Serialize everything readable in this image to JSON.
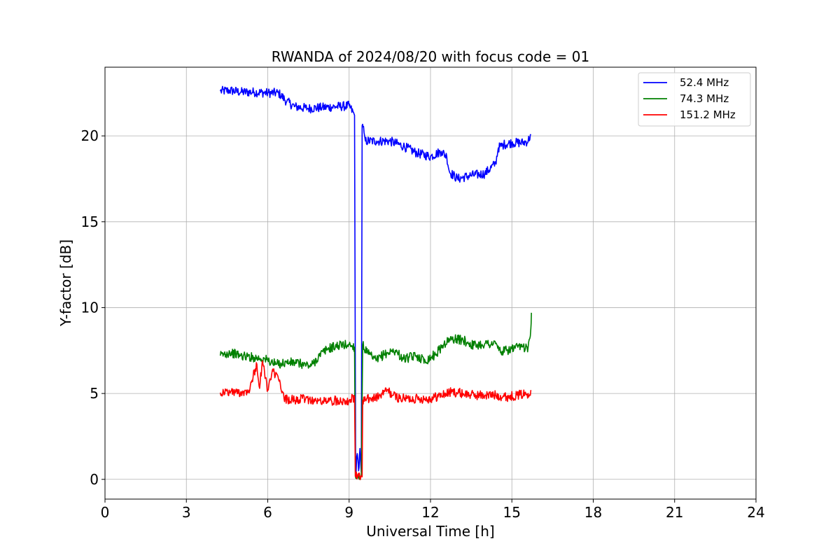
{
  "chart_data": {
    "type": "line",
    "title": "RWANDA of 2024/08/20 with focus code = 01",
    "xlabel": "Universal Time [h]",
    "ylabel": "Y-factor [dB]",
    "xlim": [
      0,
      24
    ],
    "ylim": [
      -1.15,
      24
    ],
    "xticks": [
      0,
      3,
      6,
      9,
      12,
      15,
      18,
      21,
      24
    ],
    "xtick_labels": [
      "0",
      "3",
      "6",
      "9",
      "12",
      "15",
      "18",
      "21",
      "24"
    ],
    "yticks": [
      0,
      5,
      10,
      15,
      20
    ],
    "ytick_labels": [
      "0",
      "5",
      "10",
      "15",
      "20"
    ],
    "grid": true,
    "legend_position": "top-right",
    "series": [
      {
        "name": "52.4 MHz",
        "color": "#0000ff",
        "points": [
          [
            4.25,
            22.6
          ],
          [
            4.6,
            22.65
          ],
          [
            5.0,
            22.55
          ],
          [
            5.5,
            22.55
          ],
          [
            6.0,
            22.5
          ],
          [
            6.4,
            22.5
          ],
          [
            6.7,
            22.0
          ],
          [
            7.0,
            21.7
          ],
          [
            7.5,
            21.6
          ],
          [
            8.0,
            21.65
          ],
          [
            8.5,
            21.7
          ],
          [
            9.0,
            21.75
          ],
          [
            9.2,
            21.2
          ],
          [
            9.24,
            0.3
          ],
          [
            9.3,
            1.5
          ],
          [
            9.35,
            0.5
          ],
          [
            9.4,
            1.8
          ],
          [
            9.45,
            0.4
          ],
          [
            9.48,
            20.6
          ],
          [
            9.55,
            20.2
          ],
          [
            9.6,
            19.7
          ],
          [
            10.0,
            19.7
          ],
          [
            10.5,
            19.7
          ],
          [
            11.0,
            19.4
          ],
          [
            11.5,
            19.0
          ],
          [
            12.0,
            18.8
          ],
          [
            12.4,
            19.1
          ],
          [
            12.6,
            18.8
          ],
          [
            12.7,
            17.9
          ],
          [
            13.0,
            17.5
          ],
          [
            13.5,
            17.7
          ],
          [
            14.0,
            17.8
          ],
          [
            14.4,
            18.4
          ],
          [
            14.5,
            19.3
          ],
          [
            14.7,
            19.5
          ],
          [
            15.0,
            19.6
          ],
          [
            15.4,
            19.6
          ],
          [
            15.6,
            19.7
          ],
          [
            15.7,
            20.1
          ]
        ]
      },
      {
        "name": "74.3 MHz",
        "color": "#008000",
        "points": [
          [
            4.25,
            7.2
          ],
          [
            4.6,
            7.4
          ],
          [
            5.0,
            7.2
          ],
          [
            5.5,
            7.1
          ],
          [
            5.9,
            7.0
          ],
          [
            6.3,
            6.7
          ],
          [
            6.7,
            6.8
          ],
          [
            7.0,
            6.8
          ],
          [
            7.3,
            6.7
          ],
          [
            7.6,
            6.6
          ],
          [
            7.9,
            7.2
          ],
          [
            8.2,
            7.6
          ],
          [
            8.6,
            7.8
          ],
          [
            9.0,
            7.85
          ],
          [
            9.2,
            7.7
          ],
          [
            9.23,
            0.2
          ],
          [
            9.45,
            0.2
          ],
          [
            9.5,
            7.8
          ],
          [
            9.7,
            7.3
          ],
          [
            10.0,
            6.9
          ],
          [
            10.3,
            7.3
          ],
          [
            10.7,
            7.5
          ],
          [
            11.0,
            7.0
          ],
          [
            11.5,
            7.2
          ],
          [
            11.8,
            6.9
          ],
          [
            12.2,
            7.3
          ],
          [
            12.5,
            7.9
          ],
          [
            12.8,
            8.2
          ],
          [
            13.2,
            8.1
          ],
          [
            13.6,
            7.8
          ],
          [
            14.0,
            7.9
          ],
          [
            14.4,
            7.9
          ],
          [
            14.6,
            7.4
          ],
          [
            15.0,
            7.6
          ],
          [
            15.4,
            7.7
          ],
          [
            15.6,
            7.7
          ],
          [
            15.7,
            8.8
          ],
          [
            15.72,
            9.7
          ]
        ]
      },
      {
        "name": "151.2 MHz",
        "color": "#ff0000",
        "points": [
          [
            4.25,
            5.05
          ],
          [
            4.6,
            5.1
          ],
          [
            5.0,
            5.05
          ],
          [
            5.3,
            5.2
          ],
          [
            5.6,
            6.7
          ],
          [
            5.7,
            5.3
          ],
          [
            5.8,
            6.9
          ],
          [
            6.0,
            5.2
          ],
          [
            6.2,
            6.3
          ],
          [
            6.4,
            5.8
          ],
          [
            6.6,
            4.7
          ],
          [
            7.0,
            4.6
          ],
          [
            7.4,
            4.7
          ],
          [
            7.8,
            4.55
          ],
          [
            8.2,
            4.55
          ],
          [
            8.6,
            4.6
          ],
          [
            9.0,
            4.6
          ],
          [
            9.2,
            4.8
          ],
          [
            9.23,
            0.15
          ],
          [
            9.48,
            0.15
          ],
          [
            9.5,
            4.6
          ],
          [
            9.8,
            4.7
          ],
          [
            10.1,
            4.8
          ],
          [
            10.4,
            5.2
          ],
          [
            10.6,
            4.9
          ],
          [
            10.9,
            4.7
          ],
          [
            11.2,
            4.7
          ],
          [
            11.6,
            4.7
          ],
          [
            12.0,
            4.7
          ],
          [
            12.4,
            4.9
          ],
          [
            12.8,
            5.1
          ],
          [
            13.2,
            5.0
          ],
          [
            13.6,
            4.9
          ],
          [
            14.0,
            4.9
          ],
          [
            14.4,
            4.9
          ],
          [
            14.8,
            4.8
          ],
          [
            15.2,
            4.9
          ],
          [
            15.6,
            5.0
          ],
          [
            15.7,
            5.2
          ]
        ]
      }
    ]
  }
}
